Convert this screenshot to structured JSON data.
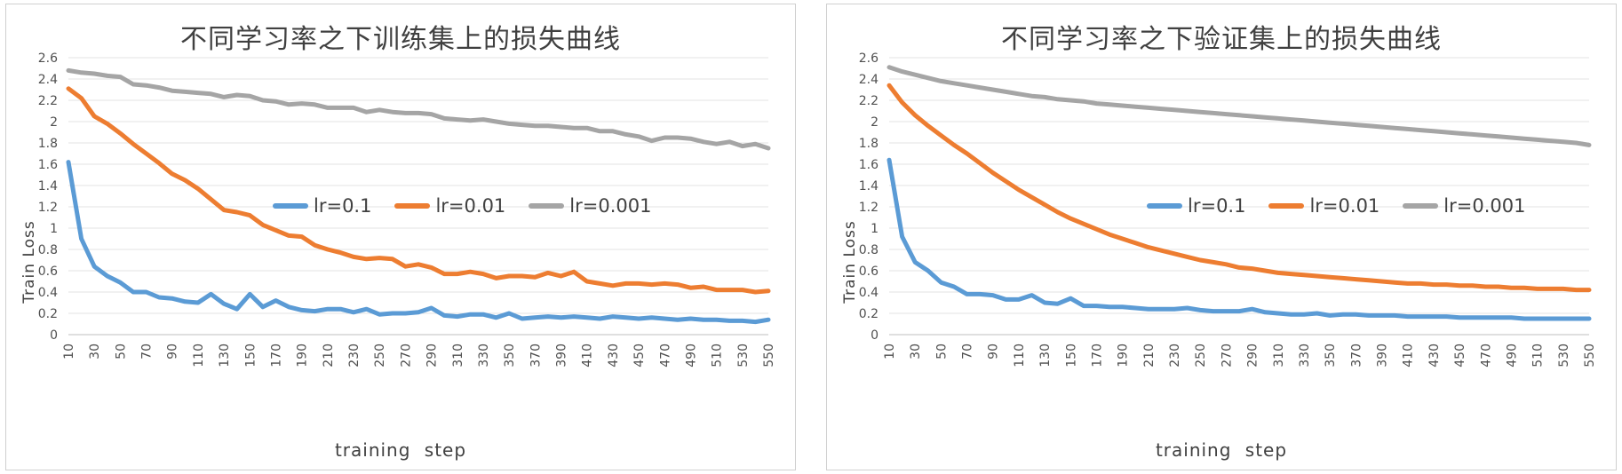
{
  "chart_data": [
    {
      "type": "line",
      "title": "不同学习率之下训练集上的损失曲线",
      "xlabel": "training step",
      "ylabel": "Train Loss",
      "ylim": [
        0,
        2.6
      ],
      "yticks": [
        "0",
        "0.2",
        "0.4",
        "0.6",
        "0.8",
        "1",
        "1.2",
        "1.4",
        "1.6",
        "1.8",
        "2",
        "2.2",
        "2.4",
        "2.6"
      ],
      "grid": true,
      "legend": "center",
      "x": [
        10,
        20,
        30,
        40,
        50,
        60,
        70,
        80,
        90,
        100,
        110,
        120,
        130,
        140,
        150,
        160,
        170,
        180,
        190,
        200,
        210,
        220,
        230,
        240,
        250,
        260,
        270,
        280,
        290,
        300,
        310,
        320,
        330,
        340,
        350,
        360,
        370,
        380,
        390,
        400,
        410,
        420,
        430,
        440,
        450,
        460,
        470,
        480,
        490,
        500,
        510,
        520,
        530,
        540,
        550
      ],
      "xticks": [
        "10",
        "30",
        "50",
        "70",
        "90",
        "110",
        "130",
        "150",
        "170",
        "190",
        "210",
        "230",
        "250",
        "270",
        "290",
        "310",
        "330",
        "350",
        "370",
        "390",
        "410",
        "430",
        "450",
        "470",
        "490",
        "510",
        "530",
        "550"
      ],
      "series": [
        {
          "name": "lr=0.1",
          "color": "#5b9bd5",
          "values": [
            1.62,
            0.9,
            0.64,
            0.55,
            0.49,
            0.4,
            0.4,
            0.35,
            0.34,
            0.31,
            0.3,
            0.38,
            0.29,
            0.24,
            0.38,
            0.26,
            0.32,
            0.26,
            0.23,
            0.22,
            0.24,
            0.24,
            0.21,
            0.24,
            0.19,
            0.2,
            0.2,
            0.21,
            0.25,
            0.18,
            0.17,
            0.19,
            0.19,
            0.16,
            0.2,
            0.15,
            0.16,
            0.17,
            0.16,
            0.17,
            0.16,
            0.15,
            0.17,
            0.16,
            0.15,
            0.16,
            0.15,
            0.14,
            0.15,
            0.14,
            0.14,
            0.13,
            0.13,
            0.12,
            0.14
          ]
        },
        {
          "name": "lr=0.01",
          "color": "#ed7d31",
          "values": [
            2.31,
            2.22,
            2.05,
            1.98,
            1.89,
            1.79,
            1.7,
            1.61,
            1.51,
            1.45,
            1.37,
            1.27,
            1.17,
            1.15,
            1.12,
            1.03,
            0.98,
            0.93,
            0.92,
            0.84,
            0.8,
            0.77,
            0.73,
            0.71,
            0.72,
            0.71,
            0.64,
            0.66,
            0.63,
            0.57,
            0.57,
            0.59,
            0.57,
            0.53,
            0.55,
            0.55,
            0.54,
            0.58,
            0.55,
            0.59,
            0.5,
            0.48,
            0.46,
            0.48,
            0.48,
            0.47,
            0.48,
            0.47,
            0.44,
            0.45,
            0.42,
            0.42,
            0.42,
            0.4,
            0.41
          ]
        },
        {
          "name": "lr=0.001",
          "color": "#a5a5a5",
          "values": [
            2.48,
            2.46,
            2.45,
            2.43,
            2.42,
            2.35,
            2.34,
            2.32,
            2.29,
            2.28,
            2.27,
            2.26,
            2.23,
            2.25,
            2.24,
            2.2,
            2.19,
            2.16,
            2.17,
            2.16,
            2.13,
            2.13,
            2.13,
            2.09,
            2.11,
            2.09,
            2.08,
            2.08,
            2.07,
            2.03,
            2.02,
            2.01,
            2.02,
            2.0,
            1.98,
            1.97,
            1.96,
            1.96,
            1.95,
            1.94,
            1.94,
            1.91,
            1.91,
            1.88,
            1.86,
            1.82,
            1.85,
            1.85,
            1.84,
            1.81,
            1.79,
            1.81,
            1.77,
            1.79,
            1.75
          ]
        }
      ]
    },
    {
      "type": "line",
      "title": "不同学习率之下验证集上的损失曲线",
      "xlabel": "training step",
      "ylabel": "Train Loss",
      "ylim": [
        0,
        2.6
      ],
      "yticks": [
        "0",
        "0.2",
        "0.4",
        "0.6",
        "0.8",
        "1",
        "1.2",
        "1.4",
        "1.6",
        "1.8",
        "2",
        "2.2",
        "2.4",
        "2.6"
      ],
      "grid": true,
      "legend": "center",
      "x": [
        10,
        20,
        30,
        40,
        50,
        60,
        70,
        80,
        90,
        100,
        110,
        120,
        130,
        140,
        150,
        160,
        170,
        180,
        190,
        200,
        210,
        220,
        230,
        240,
        250,
        260,
        270,
        280,
        290,
        300,
        310,
        320,
        330,
        340,
        350,
        360,
        370,
        380,
        390,
        400,
        410,
        420,
        430,
        440,
        450,
        460,
        470,
        480,
        490,
        500,
        510,
        520,
        530,
        540,
        550
      ],
      "xticks": [
        "10",
        "30",
        "50",
        "70",
        "90",
        "110",
        "130",
        "150",
        "170",
        "190",
        "210",
        "230",
        "250",
        "270",
        "290",
        "310",
        "330",
        "350",
        "370",
        "390",
        "410",
        "430",
        "450",
        "470",
        "490",
        "510",
        "530",
        "550"
      ],
      "series": [
        {
          "name": "lr=0.1",
          "color": "#5b9bd5",
          "values": [
            1.64,
            0.92,
            0.68,
            0.6,
            0.49,
            0.45,
            0.38,
            0.38,
            0.37,
            0.33,
            0.33,
            0.37,
            0.3,
            0.29,
            0.34,
            0.27,
            0.27,
            0.26,
            0.26,
            0.25,
            0.24,
            0.24,
            0.24,
            0.25,
            0.23,
            0.22,
            0.22,
            0.22,
            0.24,
            0.21,
            0.2,
            0.19,
            0.19,
            0.2,
            0.18,
            0.19,
            0.19,
            0.18,
            0.18,
            0.18,
            0.17,
            0.17,
            0.17,
            0.17,
            0.16,
            0.16,
            0.16,
            0.16,
            0.16,
            0.15,
            0.15,
            0.15,
            0.15,
            0.15,
            0.15
          ]
        },
        {
          "name": "lr=0.01",
          "color": "#ed7d31",
          "values": [
            2.34,
            2.18,
            2.06,
            1.96,
            1.87,
            1.78,
            1.7,
            1.61,
            1.52,
            1.44,
            1.36,
            1.29,
            1.22,
            1.15,
            1.09,
            1.04,
            0.99,
            0.94,
            0.9,
            0.86,
            0.82,
            0.79,
            0.76,
            0.73,
            0.7,
            0.68,
            0.66,
            0.63,
            0.62,
            0.6,
            0.58,
            0.57,
            0.56,
            0.55,
            0.54,
            0.53,
            0.52,
            0.51,
            0.5,
            0.49,
            0.48,
            0.48,
            0.47,
            0.47,
            0.46,
            0.46,
            0.45,
            0.45,
            0.44,
            0.44,
            0.43,
            0.43,
            0.43,
            0.42,
            0.42
          ]
        },
        {
          "name": "lr=0.001",
          "color": "#a5a5a5",
          "values": [
            2.51,
            2.47,
            2.44,
            2.41,
            2.38,
            2.36,
            2.34,
            2.32,
            2.3,
            2.28,
            2.26,
            2.24,
            2.23,
            2.21,
            2.2,
            2.19,
            2.17,
            2.16,
            2.15,
            2.14,
            2.13,
            2.12,
            2.11,
            2.1,
            2.09,
            2.08,
            2.07,
            2.06,
            2.05,
            2.04,
            2.03,
            2.02,
            2.01,
            2.0,
            1.99,
            1.98,
            1.97,
            1.96,
            1.95,
            1.94,
            1.93,
            1.92,
            1.91,
            1.9,
            1.89,
            1.88,
            1.87,
            1.86,
            1.85,
            1.84,
            1.83,
            1.82,
            1.81,
            1.8,
            1.78
          ]
        }
      ]
    }
  ]
}
